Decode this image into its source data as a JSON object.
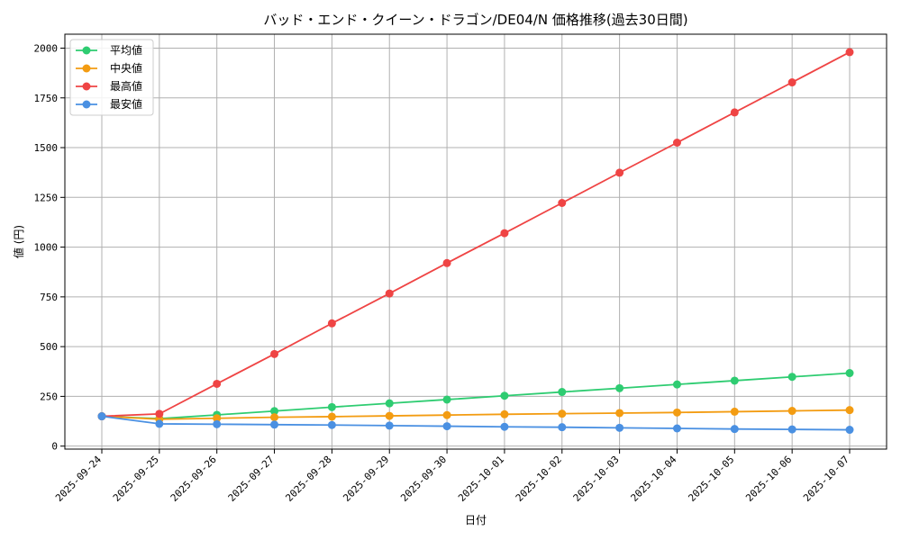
{
  "chart_data": {
    "type": "line",
    "title": "バッド・エンド・クイーン・ドラゴン/DE04/N 価格推移(過去30日間)",
    "xlabel": "日付",
    "ylabel": "値 (円)",
    "ylim": [
      -15,
      2070
    ],
    "yticks": [
      0,
      250,
      500,
      750,
      1000,
      1250,
      1500,
      1750,
      2000
    ],
    "grid": true,
    "legend_position": "top-left",
    "categories": [
      "2025-09-24",
      "2025-09-25",
      "2025-09-26",
      "2025-09-27",
      "2025-09-28",
      "2025-09-29",
      "2025-09-30",
      "2025-10-01",
      "2025-10-02",
      "2025-10-03",
      "2025-10-04",
      "2025-10-05",
      "2025-10-06",
      "2025-10-07"
    ],
    "series": [
      {
        "name": "平均値",
        "color": "#2ecc71",
        "values": [
          150,
          138,
          157,
          176,
          196,
          215,
          234,
          253,
          272,
          291,
          310,
          329,
          348,
          367
        ]
      },
      {
        "name": "中央値",
        "color": "#f39c12",
        "values": [
          150,
          135,
          140,
          145,
          148,
          152,
          156,
          160,
          163,
          166,
          169,
          173,
          177,
          181
        ]
      },
      {
        "name": "最高値",
        "color": "#ef4444",
        "values": [
          150,
          162,
          313,
          463,
          617,
          767,
          920,
          1070,
          1222,
          1374,
          1525,
          1677,
          1828,
          1980
        ]
      },
      {
        "name": "最安値",
        "color": "#4a90e2",
        "values": [
          150,
          112,
          110,
          108,
          106,
          103,
          100,
          97,
          95,
          92,
          89,
          86,
          84,
          82
        ]
      }
    ]
  }
}
